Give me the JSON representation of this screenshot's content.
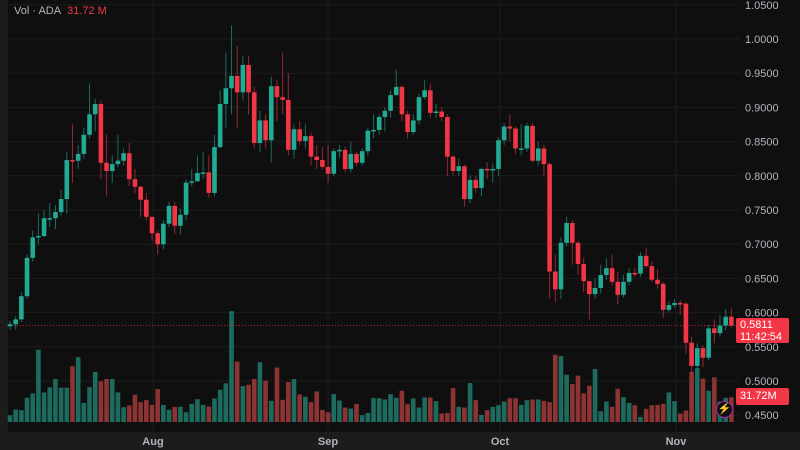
{
  "legend": {
    "label": "Vol · ADA",
    "value": "31.72 M"
  },
  "price_label": {
    "price": "0.5811",
    "countdown": "11:42:54"
  },
  "volume_label": "31.72M",
  "icons": {
    "bolt": "lightning-icon"
  },
  "colors": {
    "up": "#22ab94",
    "down": "#f23645",
    "vol_up": "#1d6b5e",
    "vol_down": "#8c3333",
    "background": "#0f0f0f"
  },
  "chart_data": {
    "type": "candlestick",
    "symbol": "ADA",
    "x_ticks": [
      "Aug",
      "Sep",
      "Oct",
      "Nov"
    ],
    "y_ticks": [
      "1.0500",
      "1.0000",
      "0.9500",
      "0.9000",
      "0.8500",
      "0.8000",
      "0.7500",
      "0.7000",
      "0.6500",
      "0.6000",
      "0.5500",
      "0.5000",
      "0.4500"
    ],
    "ylim": [
      0.45,
      1.05
    ],
    "grid": true,
    "last_price": 0.5811,
    "close": [
      0.583,
      0.59,
      0.624,
      0.68,
      0.71,
      0.712,
      0.738,
      0.738,
      0.747,
      0.766,
      0.823,
      0.822,
      0.832,
      0.86,
      0.89,
      0.905,
      0.819,
      0.807,
      0.817,
      0.822,
      0.833,
      0.795,
      0.784,
      0.765,
      0.74,
      0.716,
      0.7,
      0.73,
      0.756,
      0.727,
      0.743,
      0.79,
      0.792,
      0.804,
      0.805,
      0.775,
      0.842,
      0.905,
      0.928,
      0.946,
      0.922,
      0.962,
      0.922,
      0.848,
      0.881,
      0.852,
      0.931,
      0.915,
      0.911,
      0.838,
      0.868,
      0.851,
      0.858,
      0.828,
      0.823,
      0.813,
      0.803,
      0.836,
      0.838,
      0.81,
      0.832,
      0.819,
      0.836,
      0.866,
      0.867,
      0.886,
      0.895,
      0.918,
      0.93,
      0.89,
      0.864,
      0.881,
      0.915,
      0.925,
      0.892,
      0.894,
      0.886,
      0.828,
      0.807,
      0.814,
      0.766,
      0.794,
      0.782,
      0.81,
      0.809,
      0.81,
      0.852,
      0.872,
      0.869,
      0.84,
      0.84,
      0.873,
      0.822,
      0.84,
      0.817,
      0.66,
      0.634,
      0.702,
      0.731,
      0.702,
      0.671,
      0.646,
      0.627,
      0.636,
      0.655,
      0.665,
      0.645,
      0.626,
      0.645,
      0.658,
      0.657,
      0.683,
      0.668,
      0.648,
      0.642,
      0.604,
      0.611,
      0.614,
      0.613,
      0.556,
      0.522,
      0.548,
      0.534,
      0.577,
      0.57,
      0.581,
      0.594,
      0.5811
    ],
    "open_first": 0.58,
    "high": [
      0.588,
      0.595,
      0.63,
      0.685,
      0.72,
      0.745,
      0.75,
      0.76,
      0.757,
      0.78,
      0.835,
      0.875,
      0.845,
      0.87,
      0.935,
      0.912,
      0.91,
      0.86,
      0.83,
      0.86,
      0.84,
      0.848,
      0.81,
      0.785,
      0.775,
      0.74,
      0.72,
      0.735,
      0.762,
      0.762,
      0.752,
      0.795,
      0.81,
      0.83,
      0.835,
      0.83,
      0.86,
      0.925,
      0.98,
      1.02,
      0.99,
      0.975,
      0.975,
      0.93,
      0.895,
      0.89,
      0.945,
      0.94,
      0.98,
      0.95,
      0.875,
      0.88,
      0.875,
      0.863,
      0.845,
      0.842,
      0.845,
      0.84,
      0.845,
      0.843,
      0.85,
      0.835,
      0.84,
      0.87,
      0.89,
      0.89,
      0.9,
      0.925,
      0.955,
      0.932,
      0.895,
      0.89,
      0.92,
      0.94,
      0.935,
      0.905,
      0.9,
      0.89,
      0.83,
      0.825,
      0.816,
      0.8,
      0.8,
      0.812,
      0.82,
      0.818,
      0.856,
      0.877,
      0.89,
      0.872,
      0.875,
      0.877,
      0.877,
      0.85,
      0.845,
      0.82,
      0.685,
      0.71,
      0.74,
      0.735,
      0.705,
      0.68,
      0.645,
      0.65,
      0.67,
      0.68,
      0.685,
      0.66,
      0.655,
      0.665,
      0.665,
      0.688,
      0.695,
      0.675,
      0.663,
      0.645,
      0.617,
      0.62,
      0.618,
      0.615,
      0.565,
      0.555,
      0.552,
      0.582,
      0.59,
      0.596,
      0.605,
      0.606
    ],
    "low": [
      0.574,
      0.575,
      0.586,
      0.62,
      0.675,
      0.7,
      0.71,
      0.725,
      0.722,
      0.742,
      0.745,
      0.79,
      0.81,
      0.825,
      0.855,
      0.865,
      0.795,
      0.77,
      0.79,
      0.812,
      0.815,
      0.785,
      0.775,
      0.74,
      0.735,
      0.705,
      0.685,
      0.692,
      0.725,
      0.715,
      0.715,
      0.735,
      0.785,
      0.8,
      0.795,
      0.768,
      0.77,
      0.84,
      0.87,
      0.89,
      0.87,
      0.91,
      0.89,
      0.84,
      0.835,
      0.84,
      0.82,
      0.88,
      0.89,
      0.83,
      0.825,
      0.845,
      0.84,
      0.815,
      0.81,
      0.81,
      0.79,
      0.8,
      0.826,
      0.805,
      0.805,
      0.814,
      0.815,
      0.83,
      0.855,
      0.86,
      0.865,
      0.885,
      0.918,
      0.88,
      0.855,
      0.86,
      0.875,
      0.912,
      0.885,
      0.885,
      0.88,
      0.8,
      0.8,
      0.8,
      0.755,
      0.76,
      0.775,
      0.77,
      0.795,
      0.79,
      0.8,
      0.845,
      0.85,
      0.832,
      0.83,
      0.835,
      0.82,
      0.815,
      0.8,
      0.62,
      0.615,
      0.62,
      0.697,
      0.67,
      0.655,
      0.63,
      0.59,
      0.62,
      0.628,
      0.648,
      0.64,
      0.612,
      0.622,
      0.64,
      0.652,
      0.652,
      0.665,
      0.645,
      0.635,
      0.592,
      0.6,
      0.607,
      0.597,
      0.54,
      0.51,
      0.515,
      0.52,
      0.53,
      0.555,
      0.565,
      0.574,
      0.578
    ],
    "volume_unit": "M",
    "volume": [
      8.6,
      15.9,
      15.1,
      31.0,
      36.6,
      92.5,
      37.8,
      44.3,
      55.0,
      43.9,
      43.9,
      71.4,
      83.0,
      24.5,
      44.7,
      64.1,
      52.0,
      55.0,
      55.0,
      37.8,
      18.9,
      21.1,
      34.8,
      25.4,
      28.0,
      21.9,
      42.1,
      21.9,
      15.5,
      19.4,
      19.4,
      12.5,
      23.2,
      29.2,
      21.9,
      19.8,
      30.1,
      41.3,
      49.5,
      141.9,
      77.4,
      46.0,
      47.7,
      55.0,
      76.5,
      52.9,
      27.1,
      69.7,
      28.4,
      51.2,
      55.0,
      35.3,
      32.3,
      25.4,
      39.1,
      15.5,
      12.5,
      35.7,
      27.5,
      18.5,
      17.2,
      23.2,
      8.6,
      11.6,
      30.5,
      30.5,
      28.8,
      35.7,
      31.0,
      40.0,
      22.8,
      30.1,
      18.5,
      31.4,
      31.4,
      26.7,
      10.8,
      11.6,
      43.4,
      19.4,
      18.5,
      49.9,
      28.0,
      9.0,
      15.1,
      19.4,
      21.5,
      26.2,
      30.5,
      30.5,
      21.9,
      28.0,
      28.8,
      28.8,
      27.1,
      25.4,
      86.0,
      84.3,
      60.6,
      48.6,
      59.3,
      36.6,
      46.4,
      67.9,
      13.8,
      26.2,
      19.4,
      42.6,
      31.8,
      24.5,
      21.5,
      6.5,
      16.8,
      21.5,
      21.9,
      23.2,
      37.8,
      26.7,
      10.8,
      14.6,
      64.1,
      68.8,
      55.5,
      40.0,
      57.2,
      26.2,
      31.0,
      31.72
    ]
  }
}
